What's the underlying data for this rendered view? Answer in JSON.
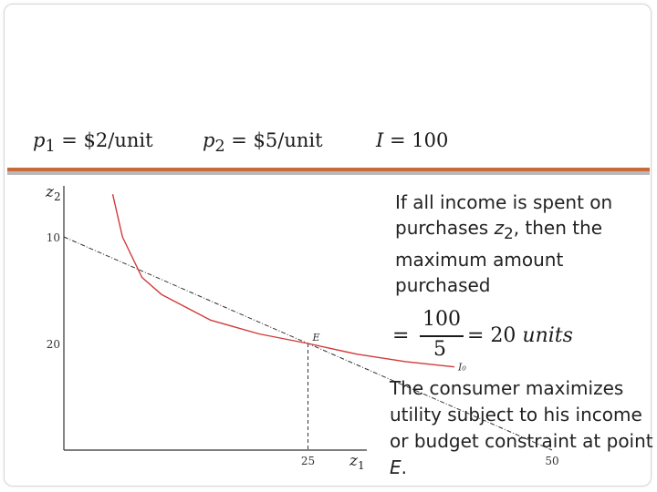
{
  "prices": {
    "p1_symbol": "p",
    "p1_sub": "1",
    "p1_value": " = $2/unit",
    "p2_symbol": "p",
    "p2_sub": "2",
    "p2_value": " = $5/unit",
    "income_symbol": "I",
    "income_value": " = 100"
  },
  "graph": {
    "y_axis_label": "z",
    "y_axis_sub": "2",
    "x_axis_label": "z",
    "x_axis_sub": "1",
    "y_ticks": [
      "20",
      "10"
    ],
    "x_ticks": [
      "25",
      "50"
    ],
    "point_label": "E",
    "curve_label": "I₀",
    "colors": {
      "indifference_curve": "#d23a3a",
      "axes": "#333333",
      "budget_line": "#333333"
    }
  },
  "chart_data": {
    "type": "line",
    "xlabel": "z1",
    "ylabel": "z2",
    "xlim": [
      0,
      54
    ],
    "ylim": [
      0,
      26
    ],
    "x_ticks": [
      25,
      50
    ],
    "y_ticks": [
      10,
      20
    ],
    "budget_line": {
      "x": [
        0,
        50
      ],
      "y": [
        20,
        0
      ],
      "style": "dash-dot"
    },
    "optimum": {
      "label": "E",
      "x": 25,
      "y": 10
    },
    "indifference_curve": {
      "label": "I₀",
      "x": [
        5,
        6,
        8,
        10,
        15,
        20,
        25,
        30,
        35,
        40
      ],
      "y": [
        24,
        20,
        16.2,
        14.6,
        12.2,
        10.9,
        10,
        9.0,
        8.3,
        7.8
      ]
    }
  },
  "text": {
    "para1_a": "If all income is spent on purchases ",
    "para1_var": "z",
    "para1_sub": "2",
    "para1_b": ", then the maximum amount purchased",
    "formula_eq": "=",
    "formula_num": "100",
    "formula_den": "5",
    "formula_rhs_eq": " = 20 ",
    "formula_rhs_unit": "units",
    "para2": "The consumer maximizes utility subject to his income or budget constraint at point ",
    "para2_point": "E",
    "para2_end": "."
  }
}
